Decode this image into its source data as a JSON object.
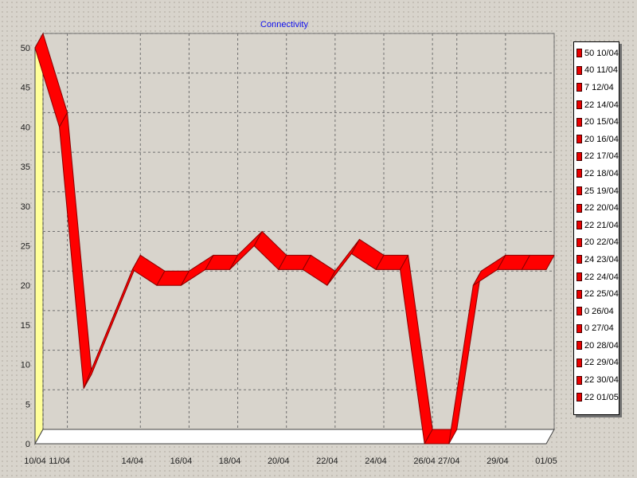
{
  "colors": {
    "series": "#ff0000",
    "series_edge": "#8b0000",
    "wall": "#ffff99",
    "plot_bg": "#d8d4cc",
    "title": "#1010ee"
  },
  "chart_data": {
    "type": "line",
    "title": "Connectivity",
    "xlabel": "",
    "ylabel": "",
    "ylim": [
      0,
      50
    ],
    "yticks": [
      0,
      5,
      10,
      15,
      20,
      25,
      30,
      35,
      40,
      45,
      50
    ],
    "grid": true,
    "style": "3d-ribbon",
    "legend_position": "right",
    "x": [
      "10/04",
      "11/04",
      "12/04",
      "14/04",
      "15/04",
      "16/04",
      "17/04",
      "18/04",
      "19/04",
      "20/04",
      "21/04",
      "22/04",
      "23/04",
      "24/04",
      "25/04",
      "26/04",
      "27/04",
      "28/04",
      "29/04",
      "30/04",
      "01/05"
    ],
    "x_tick_labels_shown": [
      "10/04",
      "11/04",
      "14/04",
      "16/04",
      "18/04",
      "20/04",
      "22/04",
      "24/04",
      "26/04",
      "27/04",
      "29/04",
      "01/05"
    ],
    "series": [
      {
        "values": [
          50,
          40,
          7,
          22,
          20,
          20,
          22,
          22,
          25,
          22,
          22,
          20,
          24,
          22,
          22,
          0,
          0,
          20,
          22,
          22,
          22
        ]
      }
    ],
    "legend": [
      "50 10/04",
      "40 11/04",
      "7 12/04",
      "22 14/04",
      "20 15/04",
      "20 16/04",
      "22 17/04",
      "22 18/04",
      "25 19/04",
      "22 20/04",
      "22 21/04",
      "20 22/04",
      "24 23/04",
      "22 24/04",
      "22 25/04",
      "0 26/04",
      "0 27/04",
      "20 28/04",
      "22 29/04",
      "22 30/04",
      "22 01/05"
    ]
  }
}
